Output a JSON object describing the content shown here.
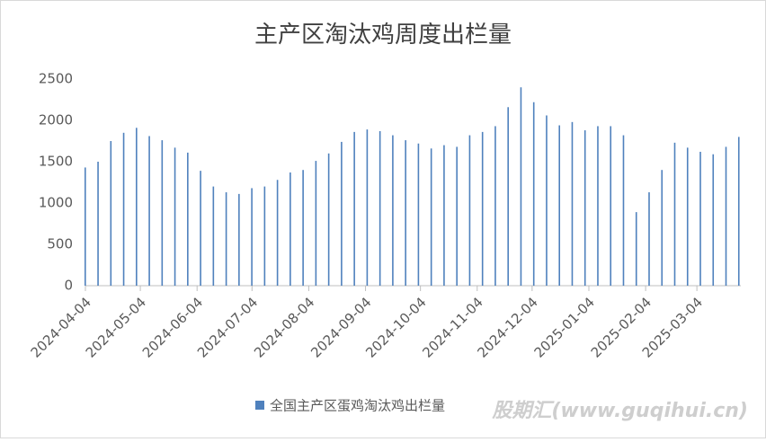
{
  "chart_data": {
    "type": "bar",
    "title": "主产区淘汰鸡周度出栏量",
    "x": [
      "2024-04-04",
      "2024-04-11",
      "2024-04-18",
      "2024-04-25",
      "2024-05-02",
      "2024-05-09",
      "2024-05-16",
      "2024-05-23",
      "2024-05-30",
      "2024-06-06",
      "2024-06-13",
      "2024-06-20",
      "2024-06-27",
      "2024-07-04",
      "2024-07-11",
      "2024-07-18",
      "2024-07-25",
      "2024-08-01",
      "2024-08-08",
      "2024-08-15",
      "2024-08-22",
      "2024-08-29",
      "2024-09-05",
      "2024-09-12",
      "2024-09-19",
      "2024-09-26",
      "2024-10-03",
      "2024-10-10",
      "2024-10-17",
      "2024-10-24",
      "2024-10-31",
      "2024-11-07",
      "2024-11-14",
      "2024-11-21",
      "2024-11-28",
      "2024-12-05",
      "2024-12-12",
      "2024-12-19",
      "2024-12-26",
      "2025-01-02",
      "2025-01-09",
      "2025-01-16",
      "2025-01-23",
      "2025-01-30",
      "2025-02-06",
      "2025-02-13",
      "2025-02-20",
      "2025-02-27",
      "2025-03-06",
      "2025-03-13",
      "2025-03-20",
      "2025-03-27"
    ],
    "series": [
      {
        "name": "全国主产区蛋鸡淘汰鸡出栏量",
        "color": "#4f81bd",
        "values": [
          1430,
          1500,
          1750,
          1850,
          1910,
          1810,
          1760,
          1670,
          1610,
          1390,
          1200,
          1130,
          1110,
          1180,
          1200,
          1280,
          1370,
          1400,
          1510,
          1600,
          1740,
          1860,
          1890,
          1870,
          1820,
          1760,
          1720,
          1660,
          1700,
          1680,
          1820,
          1860,
          1930,
          2160,
          2400,
          2220,
          2060,
          1940,
          1980,
          1880,
          1930,
          1930,
          1820,
          890,
          1130,
          1400,
          1730,
          1670,
          1620,
          1590,
          1680,
          1800
        ]
      }
    ],
    "xlim": [
      "2024-04-04",
      "2025-03-28"
    ],
    "xticks": [
      "2024-04-04",
      "2024-05-04",
      "2024-06-04",
      "2024-07-04",
      "2024-08-04",
      "2024-09-04",
      "2024-10-04",
      "2024-11-04",
      "2024-12-04",
      "2025-01-04",
      "2025-02-04",
      "2025-03-04"
    ],
    "ylim": [
      0,
      2500
    ],
    "yticks": [
      0,
      500,
      1000,
      1500,
      2000,
      2500
    ],
    "grid": false,
    "legend": "bottom",
    "watermark": "股期汇(www.guqihui.cn)"
  }
}
